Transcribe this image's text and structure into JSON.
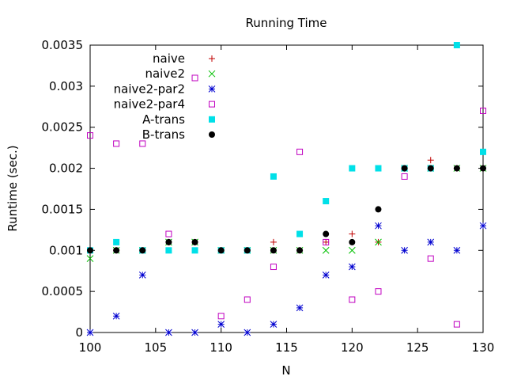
{
  "chart_data": {
    "type": "scatter",
    "title": "Running Time",
    "xlabel": "N",
    "ylabel": "Runtime (sec.)",
    "xlim": [
      100,
      130
    ],
    "ylim": [
      0,
      0.0035
    ],
    "xticks": [
      "100",
      "105",
      "110",
      "115",
      "120",
      "125",
      "130"
    ],
    "xtick_values": [
      100,
      105,
      110,
      115,
      120,
      125,
      130
    ],
    "yticks": [
      "0",
      "0.0005",
      "0.001",
      "0.0015",
      "0.002",
      "0.0025",
      "0.003",
      "0.0035"
    ],
    "ytick_values": [
      0,
      0.0005,
      0.001,
      0.0015,
      0.002,
      0.0025,
      0.003,
      0.0035
    ],
    "legend_position": "top-left",
    "series": [
      {
        "name": "naive",
        "marker": "plus",
        "color": "#c00000",
        "x": [
          100,
          102,
          104,
          106,
          108,
          110,
          112,
          114,
          116,
          118,
          120,
          122,
          124,
          126,
          128,
          130
        ],
        "y": [
          0.001,
          0.001,
          0.001,
          0.0011,
          0.0011,
          0.001,
          0.001,
          0.0011,
          0.001,
          0.0011,
          0.0012,
          0.0011,
          0.002,
          0.0021,
          0.002,
          0.002
        ]
      },
      {
        "name": "naive2",
        "marker": "cross",
        "color": "#00c000",
        "x": [
          100,
          102,
          104,
          106,
          108,
          110,
          112,
          114,
          116,
          118,
          120,
          122,
          124,
          126,
          128,
          130
        ],
        "y": [
          0.0009,
          0.001,
          0.001,
          0.0011,
          0.0011,
          0.001,
          0.001,
          0.001,
          0.001,
          0.001,
          0.001,
          0.0011,
          0.002,
          0.002,
          0.002,
          0.002
        ]
      },
      {
        "name": "naive2-par2",
        "marker": "star",
        "color": "#0000d0",
        "x": [
          100,
          102,
          104,
          106,
          108,
          110,
          112,
          114,
          116,
          118,
          120,
          122,
          124,
          126,
          128,
          130
        ],
        "y": [
          0,
          0.0002,
          0.0007,
          0,
          0,
          0.0001,
          0,
          0.0001,
          0.0003,
          0.0007,
          0.0008,
          0.0013,
          0.001,
          0.0011,
          0.001,
          0.0013
        ]
      },
      {
        "name": "naive2-par4",
        "marker": "open-square",
        "color": "#c000c0",
        "x": [
          100,
          102,
          104,
          106,
          108,
          110,
          112,
          114,
          116,
          118,
          120,
          122,
          124,
          126,
          128,
          130
        ],
        "y": [
          0.0024,
          0.0023,
          0.0023,
          0.0012,
          0.0031,
          0.0002,
          0.0004,
          0.0008,
          0.0022,
          0.0011,
          0.0004,
          0.0005,
          0.0019,
          0.0009,
          0.0001,
          0.0027
        ]
      },
      {
        "name": "A-trans",
        "marker": "filled-square",
        "color": "#00e0e8",
        "x": [
          100,
          102,
          104,
          106,
          108,
          110,
          112,
          114,
          116,
          118,
          120,
          122,
          124,
          126,
          128,
          130
        ],
        "y": [
          0.001,
          0.0011,
          0.001,
          0.001,
          0.001,
          0.001,
          0.001,
          0.0019,
          0.0012,
          0.0016,
          0.002,
          0.002,
          0.002,
          0.002,
          0.0035,
          0.0022
        ]
      },
      {
        "name": "B-trans",
        "marker": "filled-circle",
        "color": "#000000",
        "x": [
          100,
          102,
          104,
          106,
          108,
          110,
          112,
          114,
          116,
          118,
          120,
          122,
          124,
          126,
          128,
          130
        ],
        "y": [
          0.001,
          0.001,
          0.001,
          0.0011,
          0.0011,
          0.001,
          0.001,
          0.001,
          0.001,
          0.0012,
          0.0011,
          0.0015,
          0.002,
          0.002,
          0.002,
          0.002
        ]
      }
    ]
  }
}
